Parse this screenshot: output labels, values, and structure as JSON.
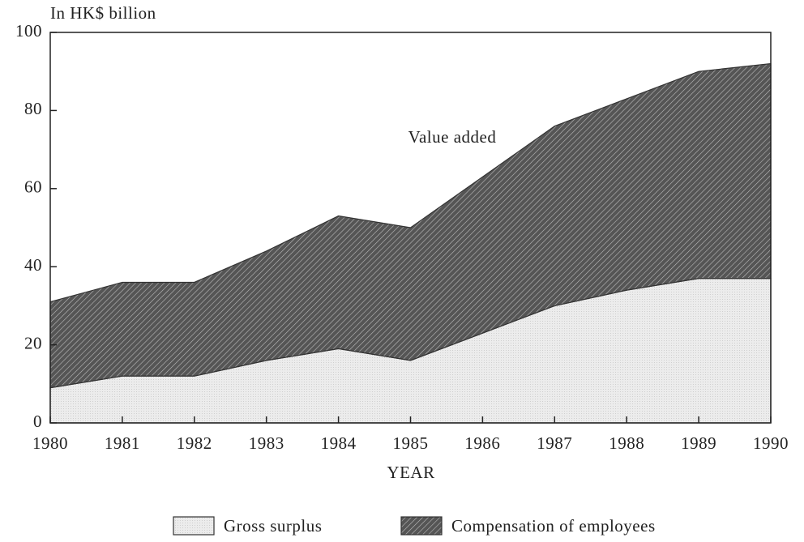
{
  "chart_data": {
    "type": "stacked_area",
    "y_label": "In HK$ billion",
    "x_label": "YEAR",
    "annotation": "Value added",
    "categories": [
      "1980",
      "1981",
      "1982",
      "1983",
      "1984",
      "1985",
      "1986",
      "1987",
      "1988",
      "1989",
      "1990"
    ],
    "series": [
      {
        "name": "Gross surplus",
        "color": "#ececec",
        "values": [
          9,
          12,
          12,
          16,
          19,
          16,
          23,
          30,
          34,
          37,
          37
        ]
      },
      {
        "name": "Compensation of employees",
        "color": "#555555",
        "values": [
          22,
          24,
          24,
          28,
          34,
          34,
          40,
          46,
          49,
          53,
          55
        ]
      }
    ],
    "ylim": [
      0,
      100
    ],
    "yticks": [
      0,
      20,
      40,
      60,
      80,
      100
    ]
  }
}
